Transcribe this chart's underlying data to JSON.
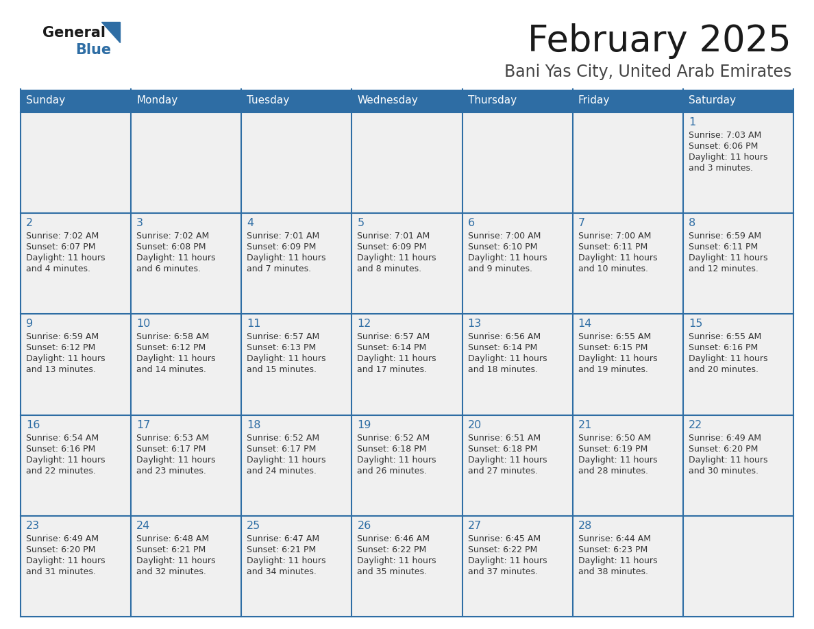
{
  "title": "February 2025",
  "subtitle": "Bani Yas City, United Arab Emirates",
  "days_of_week": [
    "Sunday",
    "Monday",
    "Tuesday",
    "Wednesday",
    "Thursday",
    "Friday",
    "Saturday"
  ],
  "header_bg": "#2E6DA4",
  "header_text": "#FFFFFF",
  "cell_bg": "#F0F0F0",
  "cell_border": "#2E6DA4",
  "day_number_color": "#2E6DA4",
  "info_text_color": "#333333",
  "title_color": "#1a1a1a",
  "subtitle_color": "#444444",
  "calendar_data": [
    {
      "day": 1,
      "col": 6,
      "row": 0,
      "sunrise": "7:03 AM",
      "sunset": "6:06 PM",
      "daylight": "11 hours and 3 minutes"
    },
    {
      "day": 2,
      "col": 0,
      "row": 1,
      "sunrise": "7:02 AM",
      "sunset": "6:07 PM",
      "daylight": "11 hours and 4 minutes"
    },
    {
      "day": 3,
      "col": 1,
      "row": 1,
      "sunrise": "7:02 AM",
      "sunset": "6:08 PM",
      "daylight": "11 hours and 6 minutes"
    },
    {
      "day": 4,
      "col": 2,
      "row": 1,
      "sunrise": "7:01 AM",
      "sunset": "6:09 PM",
      "daylight": "11 hours and 7 minutes"
    },
    {
      "day": 5,
      "col": 3,
      "row": 1,
      "sunrise": "7:01 AM",
      "sunset": "6:09 PM",
      "daylight": "11 hours and 8 minutes"
    },
    {
      "day": 6,
      "col": 4,
      "row": 1,
      "sunrise": "7:00 AM",
      "sunset": "6:10 PM",
      "daylight": "11 hours and 9 minutes"
    },
    {
      "day": 7,
      "col": 5,
      "row": 1,
      "sunrise": "7:00 AM",
      "sunset": "6:11 PM",
      "daylight": "11 hours and 10 minutes"
    },
    {
      "day": 8,
      "col": 6,
      "row": 1,
      "sunrise": "6:59 AM",
      "sunset": "6:11 PM",
      "daylight": "11 hours and 12 minutes"
    },
    {
      "day": 9,
      "col": 0,
      "row": 2,
      "sunrise": "6:59 AM",
      "sunset": "6:12 PM",
      "daylight": "11 hours and 13 minutes"
    },
    {
      "day": 10,
      "col": 1,
      "row": 2,
      "sunrise": "6:58 AM",
      "sunset": "6:12 PM",
      "daylight": "11 hours and 14 minutes"
    },
    {
      "day": 11,
      "col": 2,
      "row": 2,
      "sunrise": "6:57 AM",
      "sunset": "6:13 PM",
      "daylight": "11 hours and 15 minutes"
    },
    {
      "day": 12,
      "col": 3,
      "row": 2,
      "sunrise": "6:57 AM",
      "sunset": "6:14 PM",
      "daylight": "11 hours and 17 minutes"
    },
    {
      "day": 13,
      "col": 4,
      "row": 2,
      "sunrise": "6:56 AM",
      "sunset": "6:14 PM",
      "daylight": "11 hours and 18 minutes"
    },
    {
      "day": 14,
      "col": 5,
      "row": 2,
      "sunrise": "6:55 AM",
      "sunset": "6:15 PM",
      "daylight": "11 hours and 19 minutes"
    },
    {
      "day": 15,
      "col": 6,
      "row": 2,
      "sunrise": "6:55 AM",
      "sunset": "6:16 PM",
      "daylight": "11 hours and 20 minutes"
    },
    {
      "day": 16,
      "col": 0,
      "row": 3,
      "sunrise": "6:54 AM",
      "sunset": "6:16 PM",
      "daylight": "11 hours and 22 minutes"
    },
    {
      "day": 17,
      "col": 1,
      "row": 3,
      "sunrise": "6:53 AM",
      "sunset": "6:17 PM",
      "daylight": "11 hours and 23 minutes"
    },
    {
      "day": 18,
      "col": 2,
      "row": 3,
      "sunrise": "6:52 AM",
      "sunset": "6:17 PM",
      "daylight": "11 hours and 24 minutes"
    },
    {
      "day": 19,
      "col": 3,
      "row": 3,
      "sunrise": "6:52 AM",
      "sunset": "6:18 PM",
      "daylight": "11 hours and 26 minutes"
    },
    {
      "day": 20,
      "col": 4,
      "row": 3,
      "sunrise": "6:51 AM",
      "sunset": "6:18 PM",
      "daylight": "11 hours and 27 minutes"
    },
    {
      "day": 21,
      "col": 5,
      "row": 3,
      "sunrise": "6:50 AM",
      "sunset": "6:19 PM",
      "daylight": "11 hours and 28 minutes"
    },
    {
      "day": 22,
      "col": 6,
      "row": 3,
      "sunrise": "6:49 AM",
      "sunset": "6:20 PM",
      "daylight": "11 hours and 30 minutes"
    },
    {
      "day": 23,
      "col": 0,
      "row": 4,
      "sunrise": "6:49 AM",
      "sunset": "6:20 PM",
      "daylight": "11 hours and 31 minutes"
    },
    {
      "day": 24,
      "col": 1,
      "row": 4,
      "sunrise": "6:48 AM",
      "sunset": "6:21 PM",
      "daylight": "11 hours and 32 minutes"
    },
    {
      "day": 25,
      "col": 2,
      "row": 4,
      "sunrise": "6:47 AM",
      "sunset": "6:21 PM",
      "daylight": "11 hours and 34 minutes"
    },
    {
      "day": 26,
      "col": 3,
      "row": 4,
      "sunrise": "6:46 AM",
      "sunset": "6:22 PM",
      "daylight": "11 hours and 35 minutes"
    },
    {
      "day": 27,
      "col": 4,
      "row": 4,
      "sunrise": "6:45 AM",
      "sunset": "6:22 PM",
      "daylight": "11 hours and 37 minutes"
    },
    {
      "day": 28,
      "col": 5,
      "row": 4,
      "sunrise": "6:44 AM",
      "sunset": "6:23 PM",
      "daylight": "11 hours and 38 minutes"
    }
  ]
}
